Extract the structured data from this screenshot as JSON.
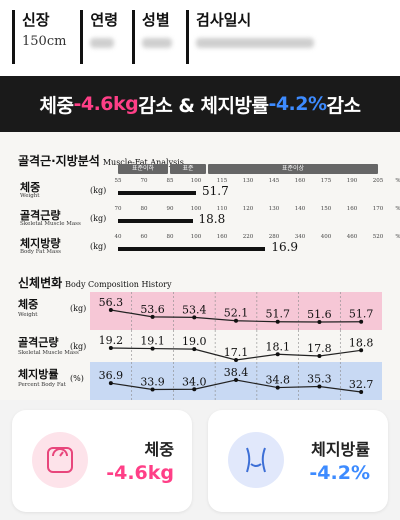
{
  "header": {
    "fields": [
      {
        "label": "신장",
        "value": "150cm"
      },
      {
        "label": "연령",
        "value": ""
      },
      {
        "label": "성별",
        "value": ""
      },
      {
        "label": "검사일시",
        "value": ""
      }
    ]
  },
  "banner": {
    "part1": "체중 ",
    "part2": "-4.6kg",
    "part3": " 감소 & 체지방률 ",
    "part4": "-4.2%",
    "part5": " 감소",
    "pink_color": "#ff3f87",
    "blue_color": "#3d8bff"
  },
  "muscle_fat": {
    "title": "골격근·지방분석",
    "title_en": "Muscle-Fat Analysis",
    "range_labels": [
      "표준이하",
      "표준",
      "표준이상"
    ],
    "rows": [
      {
        "label": "체중",
        "sub": "Weight",
        "unit": "(kg)",
        "value": "51.7",
        "percent": 100,
        "ticks": [
          "55",
          "70",
          "85",
          "100",
          "115",
          "130",
          "145",
          "160",
          "175",
          "190",
          "205"
        ],
        "pct_sign": "%"
      },
      {
        "label": "골격근량",
        "sub": "Skeletal Muscle Mass",
        "unit": "(kg)",
        "value": "18.8",
        "percent": 98,
        "ticks": [
          "70",
          "80",
          "90",
          "100",
          "110",
          "120",
          "130",
          "140",
          "150",
          "160",
          "170"
        ],
        "pct_sign": "%"
      },
      {
        "label": "체지방량",
        "sub": "Body Fat Mass",
        "unit": "(kg)",
        "value": "16.9",
        "percent": 140,
        "ticks": [
          "40",
          "60",
          "80",
          "100",
          "160",
          "220",
          "280",
          "340",
          "400",
          "460",
          "520"
        ],
        "pct_sign": "%"
      }
    ]
  },
  "history": {
    "title": "신체변화",
    "title_en": "Body Composition History",
    "rows": [
      {
        "label": "체중",
        "sub": "Weight",
        "unit": "(kg)",
        "values": [
          "56.3",
          "53.6",
          "53.4",
          "52.1",
          "51.7",
          "51.6",
          "51.7"
        ],
        "band": "#f6c7d6"
      },
      {
        "label": "골격근량",
        "sub": "Skeletal Muscle Mass",
        "unit": "(kg)",
        "values": [
          "19.2",
          "19.1",
          "19.0",
          "17.1",
          "18.1",
          "17.8",
          "18.8"
        ],
        "band": ""
      },
      {
        "label": "체지방률",
        "sub": "Percent Body Fat",
        "unit": "(%)",
        "values": [
          "36.9",
          "33.9",
          "34.0",
          "38.4",
          "34.8",
          "35.3",
          "32.7"
        ],
        "band": "#c8d9f3"
      }
    ]
  },
  "cards": [
    {
      "label": "체중",
      "value": "-4.6kg",
      "color": "#ff3f87",
      "icon": "scale-icon",
      "icon_bg": "#fde3ea"
    },
    {
      "label": "체지방률",
      "value": "-4.2%",
      "color": "#3d8bff",
      "icon": "body-icon",
      "icon_bg": "#e1e8fb"
    }
  ]
}
